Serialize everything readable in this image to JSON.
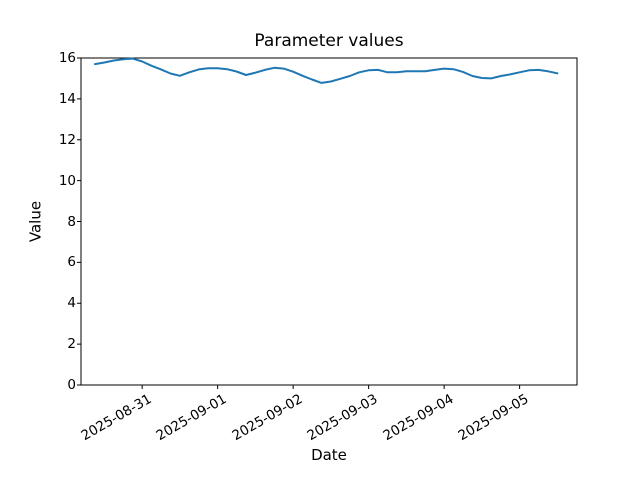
{
  "figure": {
    "background": "#ffffff"
  },
  "chart_data": {
    "type": "line",
    "title": "Parameter values",
    "xlabel": "Date",
    "ylabel": "Value",
    "ylim": [
      0,
      16
    ],
    "yticks": [
      0,
      2,
      4,
      6,
      8,
      10,
      12,
      14,
      16
    ],
    "xticks": {
      "labels": [
        "2025-08-31",
        "2025-09-01",
        "2025-09-02",
        "2025-09-03",
        "2025-09-04",
        "2025-09-05"
      ],
      "day_offsets": [
        0,
        1,
        2,
        3,
        4,
        5
      ],
      "rotation_deg": 30
    },
    "x_domain_days": [
      -0.81,
      5.76
    ],
    "grid": false,
    "legend": false,
    "axis_color": "#000000",
    "series": [
      {
        "name": "parameter-values",
        "color": "#1f77b4",
        "x_start": "2025-08-30 09:00",
        "x_step_hours": 3,
        "x_start_day_offset": -0.625,
        "x_step_days": 0.125,
        "values": [
          15.7,
          15.78,
          15.88,
          15.94,
          15.97,
          15.83,
          15.62,
          15.44,
          15.24,
          15.13,
          15.3,
          15.44,
          15.5,
          15.5,
          15.45,
          15.34,
          15.17,
          15.28,
          15.42,
          15.52,
          15.48,
          15.33,
          15.13,
          14.95,
          14.78,
          14.85,
          14.98,
          15.12,
          15.3,
          15.4,
          15.42,
          15.3,
          15.3,
          15.35,
          15.35,
          15.35,
          15.42,
          15.48,
          15.45,
          15.32,
          15.12,
          15.02,
          15.0,
          15.12,
          15.2,
          15.3,
          15.4,
          15.42,
          15.35,
          15.25
        ]
      }
    ]
  }
}
